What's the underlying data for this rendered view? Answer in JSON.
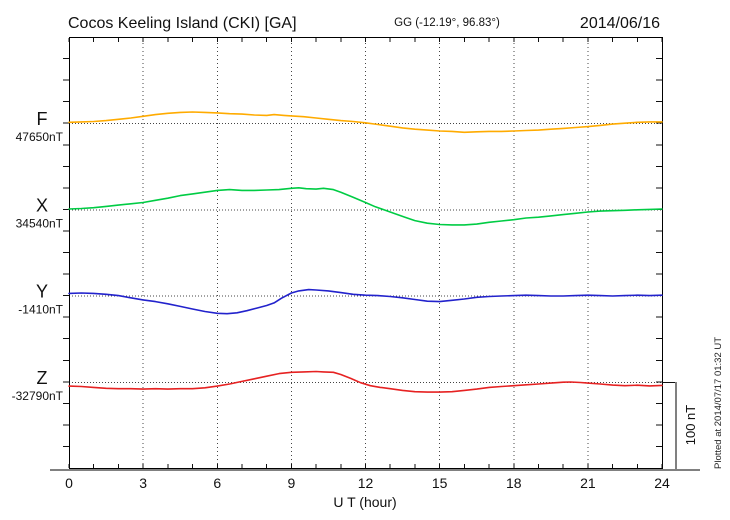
{
  "page": {
    "title": "Cocos Keeling Island (CKI)  [GA]",
    "coords": "GG (-12.19°,  96.83°)",
    "date": "2014/06/16",
    "plotted_at": "Plotted at 2014/07/17 01:32 UT"
  },
  "chart_data": {
    "type": "line",
    "title": "Cocos Keeling Island (CKI)  [GA]",
    "subtitle": "GG (-12.19°,  96.83°)",
    "date_label": "2014/06/16",
    "xlabel": "U T (hour)",
    "x_range": [
      0,
      24
    ],
    "x_ticks": [
      0,
      3,
      6,
      9,
      12,
      15,
      18,
      21,
      24
    ],
    "x_minor_step": 1,
    "grid_hours": [
      3,
      6,
      9,
      12,
      15,
      18,
      21
    ],
    "grid_on": true,
    "y_minor_ticks_per_100nT": 4,
    "scale_bar": {
      "label": "100 nT",
      "nT": 100
    },
    "axis_gray": "#808080",
    "dotted_color": "#444444",
    "frame_color": "#000000",
    "series": [
      {
        "name": "F",
        "base_label": "47650nT",
        "base_value_nT": 47650,
        "color": "#FFAB00",
        "units": "nT offset from base",
        "points": [
          [
            0,
            1
          ],
          [
            0.5,
            1.5
          ],
          [
            1,
            2
          ],
          [
            1.5,
            3
          ],
          [
            2,
            4.5
          ],
          [
            2.5,
            6
          ],
          [
            3,
            8
          ],
          [
            3.5,
            10
          ],
          [
            4,
            11.5
          ],
          [
            4.5,
            12.5
          ],
          [
            5,
            13
          ],
          [
            5.5,
            12.5
          ],
          [
            6,
            12
          ],
          [
            6.5,
            11
          ],
          [
            7,
            10.5
          ],
          [
            7.5,
            9.5
          ],
          [
            8,
            9
          ],
          [
            8.3,
            10
          ],
          [
            8.7,
            9
          ],
          [
            9,
            8.5
          ],
          [
            9.5,
            7.5
          ],
          [
            10,
            6
          ],
          [
            10.5,
            4.5
          ],
          [
            11,
            3
          ],
          [
            11.5,
            2
          ],
          [
            12,
            0.5
          ],
          [
            12.5,
            -1.5
          ],
          [
            13,
            -3.5
          ],
          [
            13.5,
            -5.5
          ],
          [
            14,
            -7
          ],
          [
            14.5,
            -8
          ],
          [
            15,
            -9
          ],
          [
            15.5,
            -9.5
          ],
          [
            16,
            -10.5
          ],
          [
            16.5,
            -10
          ],
          [
            17,
            -9.5
          ],
          [
            17.5,
            -9.5
          ],
          [
            18,
            -9
          ],
          [
            18.5,
            -8.5
          ],
          [
            19,
            -8
          ],
          [
            19.5,
            -7
          ],
          [
            20,
            -6
          ],
          [
            20.5,
            -5
          ],
          [
            21,
            -4
          ],
          [
            21.5,
            -2.5
          ],
          [
            22,
            -1
          ],
          [
            22.5,
            0
          ],
          [
            23,
            1
          ],
          [
            23.5,
            1.5
          ],
          [
            24,
            1.5
          ]
        ]
      },
      {
        "name": "X",
        "base_label": "34540nT",
        "base_value_nT": 34540,
        "color": "#00CC44",
        "units": "nT offset from base",
        "points": [
          [
            0,
            0.5
          ],
          [
            0.5,
            1
          ],
          [
            1,
            2
          ],
          [
            1.5,
            3.5
          ],
          [
            2,
            5
          ],
          [
            2.5,
            6.5
          ],
          [
            3,
            8
          ],
          [
            3.5,
            10.5
          ],
          [
            4,
            13
          ],
          [
            4.5,
            16
          ],
          [
            5,
            18
          ],
          [
            5.5,
            20
          ],
          [
            6,
            22
          ],
          [
            6.5,
            23
          ],
          [
            7,
            22
          ],
          [
            7.5,
            22
          ],
          [
            8,
            22.5
          ],
          [
            8.5,
            23
          ],
          [
            9,
            24.5
          ],
          [
            9.3,
            25
          ],
          [
            9.6,
            24
          ],
          [
            10,
            23.5
          ],
          [
            10.3,
            24.5
          ],
          [
            10.7,
            23
          ],
          [
            11,
            20
          ],
          [
            11.5,
            14
          ],
          [
            12,
            8
          ],
          [
            12.4,
            3
          ],
          [
            12.8,
            -1
          ],
          [
            13.2,
            -5
          ],
          [
            13.6,
            -9
          ],
          [
            14,
            -13
          ],
          [
            14.5,
            -16
          ],
          [
            15,
            -17.5
          ],
          [
            15.5,
            -18
          ],
          [
            16,
            -18
          ],
          [
            16.5,
            -17
          ],
          [
            17,
            -15
          ],
          [
            17.5,
            -13.5
          ],
          [
            18,
            -12
          ],
          [
            18.5,
            -10
          ],
          [
            19,
            -9
          ],
          [
            19.5,
            -7.5
          ],
          [
            20,
            -6
          ],
          [
            20.5,
            -4.5
          ],
          [
            21,
            -3
          ],
          [
            21.5,
            -2
          ],
          [
            22,
            -1.5
          ],
          [
            22.5,
            -1
          ],
          [
            23,
            -0.5
          ],
          [
            23.5,
            0
          ],
          [
            24,
            0.5
          ]
        ]
      },
      {
        "name": "Y",
        "base_label": "-1410nT",
        "base_value_nT": -1410,
        "color": "#2222CC",
        "units": "nT offset from base",
        "points": [
          [
            0,
            2.5
          ],
          [
            0.5,
            3
          ],
          [
            1,
            2.5
          ],
          [
            1.5,
            1.5
          ],
          [
            2,
            0
          ],
          [
            2.5,
            -2.5
          ],
          [
            3,
            -5
          ],
          [
            3.5,
            -7
          ],
          [
            4,
            -9.5
          ],
          [
            4.5,
            -12.5
          ],
          [
            5,
            -15.5
          ],
          [
            5.5,
            -18.5
          ],
          [
            6,
            -20.5
          ],
          [
            6.4,
            -21
          ],
          [
            6.8,
            -20
          ],
          [
            7.2,
            -17.5
          ],
          [
            7.6,
            -14.5
          ],
          [
            8,
            -11.5
          ],
          [
            8.3,
            -8.5
          ],
          [
            8.6,
            -3
          ],
          [
            9,
            3
          ],
          [
            9.3,
            5.5
          ],
          [
            9.7,
            7
          ],
          [
            10,
            6.5
          ],
          [
            10.5,
            5.5
          ],
          [
            11,
            3.5
          ],
          [
            11.5,
            1.5
          ],
          [
            12,
            0.5
          ],
          [
            12.5,
            0
          ],
          [
            13,
            -1
          ],
          [
            13.5,
            -2.5
          ],
          [
            14,
            -4.5
          ],
          [
            14.5,
            -6.5
          ],
          [
            15,
            -7
          ],
          [
            15.5,
            -5.5
          ],
          [
            16,
            -4
          ],
          [
            16.5,
            -2
          ],
          [
            17,
            -1
          ],
          [
            17.5,
            -0.5
          ],
          [
            18,
            0
          ],
          [
            18.5,
            0.5
          ],
          [
            19,
            0
          ],
          [
            19.5,
            -0.5
          ],
          [
            20,
            -0.5
          ],
          [
            20.5,
            0
          ],
          [
            21,
            0.5
          ],
          [
            21.5,
            0
          ],
          [
            22,
            -0.5
          ],
          [
            22.5,
            0
          ],
          [
            23,
            0.5
          ],
          [
            23.5,
            0
          ],
          [
            24,
            0.5
          ]
        ]
      },
      {
        "name": "Z",
        "base_label": "-32790nT",
        "base_value_nT": -32790,
        "color": "#E62222",
        "units": "nT offset from base",
        "points": [
          [
            0,
            -5
          ],
          [
            0.5,
            -5.5
          ],
          [
            1,
            -6.5
          ],
          [
            1.5,
            -7.5
          ],
          [
            2,
            -8
          ],
          [
            2.5,
            -8
          ],
          [
            3,
            -8.5
          ],
          [
            3.5,
            -8
          ],
          [
            4,
            -8.5
          ],
          [
            4.5,
            -8
          ],
          [
            5,
            -8
          ],
          [
            5.5,
            -7
          ],
          [
            6,
            -5
          ],
          [
            6.5,
            -2.5
          ],
          [
            7,
            0.5
          ],
          [
            7.5,
            3.5
          ],
          [
            8,
            6.5
          ],
          [
            8.5,
            9.5
          ],
          [
            9,
            11
          ],
          [
            9.5,
            11.5
          ],
          [
            10,
            12
          ],
          [
            10.3,
            11.5
          ],
          [
            10.7,
            11
          ],
          [
            11,
            8.5
          ],
          [
            11.4,
            4
          ],
          [
            11.8,
            -1
          ],
          [
            12.2,
            -4.5
          ],
          [
            12.6,
            -6.5
          ],
          [
            13,
            -8
          ],
          [
            13.5,
            -10
          ],
          [
            14,
            -11.5
          ],
          [
            14.5,
            -12
          ],
          [
            15,
            -12
          ],
          [
            15.5,
            -11.5
          ],
          [
            16,
            -10
          ],
          [
            16.5,
            -8.5
          ],
          [
            17,
            -6.5
          ],
          [
            17.5,
            -5.5
          ],
          [
            18,
            -4.5
          ],
          [
            18.5,
            -3.5
          ],
          [
            19,
            -2.5
          ],
          [
            19.5,
            -1.5
          ],
          [
            20,
            -0.5
          ],
          [
            20.3,
            -0.2
          ],
          [
            20.7,
            -0.8
          ],
          [
            21,
            -1.5
          ],
          [
            21.5,
            -2.5
          ],
          [
            22,
            -3.8
          ],
          [
            22.5,
            -4.5
          ],
          [
            23,
            -4
          ],
          [
            23.5,
            -4.8
          ],
          [
            24,
            -4.2
          ]
        ]
      }
    ],
    "plotted_at": "Plotted at 2014/07/17 01:32 UT"
  }
}
